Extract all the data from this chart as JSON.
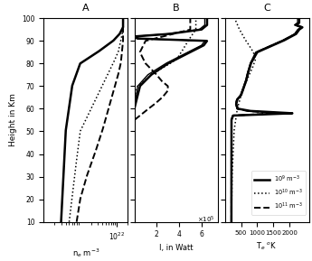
{
  "title_A": "A",
  "title_B": "B",
  "title_C": "C",
  "xlabel_A": "n$_e$ m$^{-3}$",
  "xlabel_B": "I, in Watt",
  "xlabel_B_exp": "x 10$^5$",
  "xlabel_C": "T$_e$ $^o$K",
  "ylabel": "Height in Km",
  "ylim": [
    10,
    100
  ],
  "yticks": [
    10,
    20,
    30,
    40,
    50,
    60,
    70,
    80,
    90,
    100
  ],
  "legend_labels": [
    "10$^9$ m$^{-3}$",
    "10$^{10}$ m$^{-3}$",
    "10$^{11}$ m$^{-3}$"
  ]
}
